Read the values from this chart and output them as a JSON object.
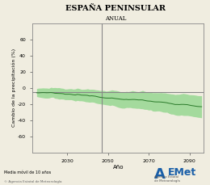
{
  "title": "ESPAÑA PENINSULAR",
  "subtitle": "ANUAL",
  "xlabel": "Año",
  "ylabel": "Cambio de la precipitación (%)",
  "footer_left": "Media móvil de 10 años",
  "footer_copy": "© Agencia Estatal de Meteorología",
  "xlim": [
    2013,
    2097
  ],
  "ylim": [
    -80,
    80
  ],
  "yticks": [
    -60,
    -40,
    -20,
    0,
    20,
    40,
    60
  ],
  "xticks": [
    2030,
    2050,
    2070,
    2090
  ],
  "vline_x": 2047,
  "hline_y": -5,
  "mean_start_year": 2015,
  "mean_end_year": 2096,
  "line_color": "#2a7a2a",
  "fill_color": "#66cc66",
  "fill_alpha": 0.55,
  "bg_color": "#f0ede0",
  "plot_bg": "#f0ede0",
  "spine_color": "#888888",
  "tick_color": "#555555"
}
